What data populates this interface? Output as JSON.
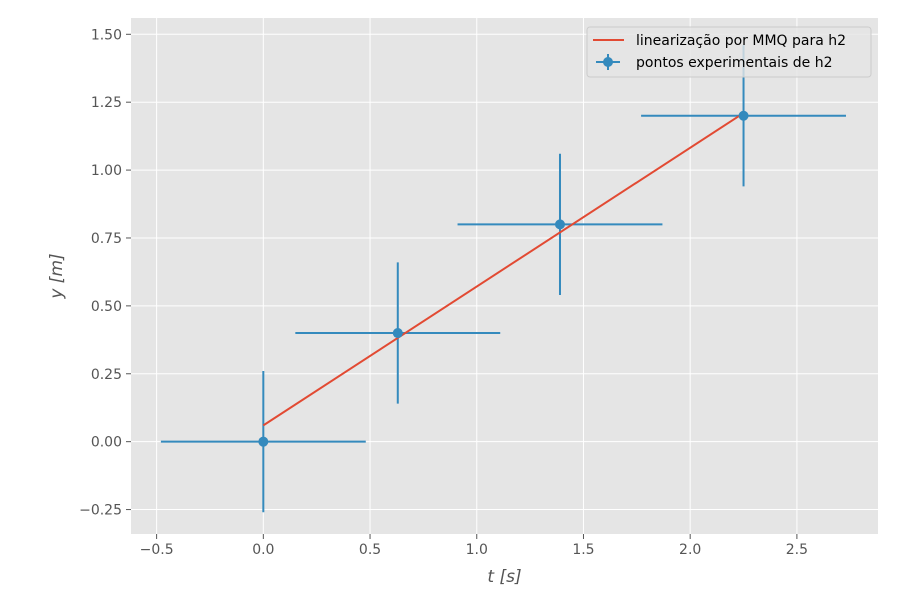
{
  "chart_data": {
    "type": "scatter",
    "xlabel": "t [s]",
    "ylabel": "y [m]",
    "xlim": [
      -0.62,
      2.88
    ],
    "ylim": [
      -0.34,
      1.56
    ],
    "xticks": [
      -0.5,
      0.0,
      0.5,
      1.0,
      1.5,
      2.0,
      2.5
    ],
    "yticks": [
      -0.25,
      0.0,
      0.25,
      0.5,
      0.75,
      1.0,
      1.25,
      1.5
    ],
    "xtick_labels": [
      "−0.5",
      "0.0",
      "0.5",
      "1.0",
      "1.5",
      "2.0",
      "2.5"
    ],
    "ytick_labels": [
      "−0.25",
      "0.00",
      "0.25",
      "0.50",
      "0.75",
      "1.00",
      "1.25",
      "1.50"
    ],
    "grid": true,
    "legend_position": "top-right",
    "series": [
      {
        "name": "pontos experimentais de h2",
        "kind": "errorbar",
        "color": "#348abd",
        "x": [
          0.0,
          0.63,
          1.39,
          2.25
        ],
        "y": [
          0.0,
          0.4,
          0.8,
          1.2
        ],
        "xerr": [
          0.48,
          0.48,
          0.48,
          0.48
        ],
        "yerr": [
          0.26,
          0.26,
          0.26,
          0.26
        ]
      },
      {
        "name": "linearização por MMQ para h2",
        "kind": "line",
        "color": "#e24a33",
        "x": [
          0.0,
          2.25
        ],
        "y": [
          0.06,
          1.21
        ]
      }
    ]
  }
}
